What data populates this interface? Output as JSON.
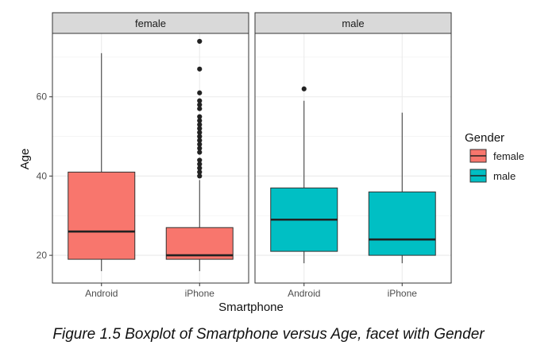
{
  "caption": "Figure 1.5 Boxplot of Smartphone versus Age, facet with Gender",
  "chart_data": {
    "type": "boxplot",
    "xlabel": "Smartphone",
    "ylabel": "Age",
    "ylim": [
      13,
      76
    ],
    "yticks": [
      20,
      40,
      60
    ],
    "categories": [
      "Android",
      "iPhone"
    ],
    "grid": true,
    "legend": {
      "title": "Gender",
      "placement": "right",
      "entries": [
        {
          "label": "female",
          "color": "#F8766D"
        },
        {
          "label": "male",
          "color": "#00BFC4"
        }
      ]
    },
    "facets": [
      {
        "label": "female",
        "color": "#F8766D",
        "boxes": [
          {
            "category": "Android",
            "min": 16,
            "q1": 19,
            "median": 26,
            "q3": 41,
            "max": 71,
            "outliers": []
          },
          {
            "category": "iPhone",
            "min": 16,
            "q1": 19,
            "median": 20,
            "q3": 27,
            "max": 39,
            "outliers": [
              40,
              41,
              42,
              43,
              44,
              46,
              47,
              48,
              49,
              50,
              51,
              52,
              53,
              54,
              55,
              57,
              58,
              59,
              61,
              67,
              74
            ]
          }
        ]
      },
      {
        "label": "male",
        "color": "#00BFC4",
        "boxes": [
          {
            "category": "Android",
            "min": 18,
            "q1": 21,
            "median": 29,
            "q3": 37,
            "max": 59,
            "outliers": [
              62
            ]
          },
          {
            "category": "iPhone",
            "min": 18,
            "q1": 20,
            "median": 24,
            "q3": 36,
            "max": 56,
            "outliers": []
          }
        ]
      }
    ]
  }
}
